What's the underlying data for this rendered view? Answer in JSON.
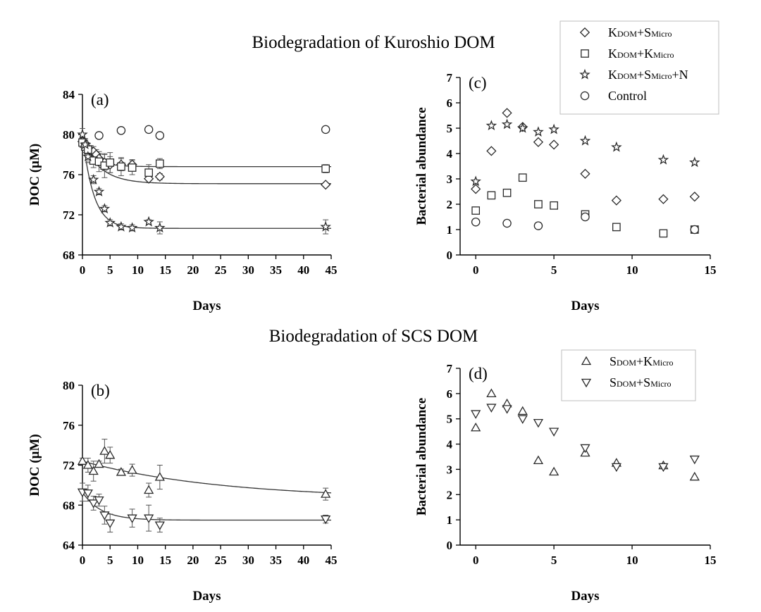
{
  "figure": {
    "title_top": "Biodegradation of Kuroshio DOM",
    "title_bottom": "Biodegradation of SCS DOM"
  },
  "chart_data": [
    {
      "id": "a",
      "panel_label": "(a)",
      "type": "scatter",
      "xlabel": "Days",
      "ylabel": "DOC (µM)",
      "xlim": [
        0,
        45
      ],
      "ylim": [
        68,
        84
      ],
      "xticks": [
        0,
        5,
        10,
        15,
        20,
        25,
        30,
        35,
        40,
        45
      ],
      "yticks": [
        68,
        72,
        76,
        80,
        84
      ],
      "series": [
        {
          "name": "KDOM+SMicro",
          "marker": "diamond",
          "x": [
            0,
            0.5,
            1,
            1.5,
            2,
            2.5,
            3,
            4,
            5,
            7,
            9,
            12,
            14,
            44
          ],
          "y": [
            79.3,
            79.1,
            78.6,
            78.4,
            78.3,
            78.0,
            77.6,
            77.2,
            77.0,
            77.0,
            77.0,
            75.6,
            75.8,
            75.0
          ],
          "err": [
            0.5,
            0.5,
            0.5,
            0.5,
            0.5,
            0.5,
            0.5,
            0.8,
            0.8,
            0.6,
            0.5,
            0.4,
            0.3,
            0.2
          ]
        },
        {
          "name": "KDOM+KMicro",
          "marker": "square",
          "x": [
            0,
            0.5,
            1,
            2,
            3,
            4,
            5,
            7,
            9,
            12,
            14,
            44
          ],
          "y": [
            79.2,
            78.8,
            78.5,
            77.4,
            77.3,
            76.9,
            77.2,
            76.8,
            76.7,
            76.2,
            77.1,
            76.6
          ],
          "err": [
            0.5,
            0.6,
            0.6,
            0.7,
            1.0,
            1.2,
            1.0,
            0.9,
            0.7,
            0.8,
            0.5,
            0.4
          ]
        },
        {
          "name": "KDOM+SMicro+N",
          "marker": "star",
          "x": [
            0,
            0.5,
            1,
            2,
            3,
            4,
            5,
            7,
            9,
            12,
            14,
            44
          ],
          "y": [
            80.0,
            79.0,
            77.8,
            75.5,
            74.3,
            72.6,
            71.2,
            70.8,
            70.7,
            71.3,
            70.7,
            70.8
          ],
          "err": [
            0.6,
            0.5,
            0.6,
            0.4,
            0.3,
            0.3,
            0.3,
            0.3,
            0.3,
            0.2,
            0.6,
            0.7
          ]
        },
        {
          "name": "Control",
          "marker": "circle",
          "x": [
            3,
            7,
            12,
            14,
            44
          ],
          "y": [
            79.9,
            80.4,
            80.5,
            79.9,
            80.5
          ],
          "err": [
            0,
            0,
            0,
            0,
            0
          ]
        }
      ],
      "fits": [
        {
          "series": "KDOM+SMicro",
          "y0": 79.3,
          "yinf": 75.1,
          "k": 0.3
        },
        {
          "series": "KDOM+KMicro",
          "y0": 79.2,
          "yinf": 76.8,
          "k": 0.45
        },
        {
          "series": "KDOM+SMicro+N",
          "y0": 80.0,
          "yinf": 70.65,
          "k": 0.5
        }
      ]
    },
    {
      "id": "b",
      "panel_label": "(b)",
      "type": "scatter",
      "xlabel": "Days",
      "ylabel": "DOC (µM)",
      "xlim": [
        0,
        45
      ],
      "ylim": [
        64,
        80
      ],
      "xticks": [
        0,
        5,
        10,
        15,
        20,
        25,
        30,
        35,
        40,
        45
      ],
      "yticks": [
        64,
        68,
        72,
        76,
        80
      ],
      "series": [
        {
          "name": "SDOM+KMicro",
          "marker": "triangle-up",
          "x": [
            0,
            1,
            2,
            3,
            4,
            5,
            7,
            9,
            12,
            14,
            44
          ],
          "y": [
            72.4,
            72.0,
            71.4,
            72.1,
            73.4,
            73.0,
            71.3,
            71.5,
            69.5,
            70.8,
            69.1
          ],
          "err": [
            0.3,
            0.7,
            1.0,
            0.3,
            1.2,
            0.8,
            0.3,
            0.6,
            0.7,
            1.2,
            0.6
          ]
        },
        {
          "name": "SDOM+SMicro",
          "marker": "triangle-down",
          "x": [
            0,
            1,
            2,
            3,
            4,
            5,
            9,
            12,
            14,
            44
          ],
          "y": [
            69.3,
            69.2,
            68.2,
            68.5,
            67.0,
            66.2,
            66.7,
            66.7,
            66.0,
            66.6
          ],
          "err": [
            0.9,
            0.8,
            0.7,
            0.6,
            0.9,
            0.9,
            0.9,
            1.3,
            0.7,
            0.4
          ]
        }
      ],
      "fits": [
        {
          "series": "SDOM+KMicro",
          "y0": 72.4,
          "yinf": 68.6,
          "k": 0.04
        },
        {
          "series": "SDOM+SMicro",
          "y0": 69.3,
          "yinf": 66.5,
          "k": 0.3
        }
      ]
    },
    {
      "id": "c",
      "panel_label": "(c)",
      "type": "scatter",
      "xlabel": "Days",
      "ylabel": "Bacterial abundance",
      "xlim": [
        -1,
        15
      ],
      "ylim": [
        0,
        7
      ],
      "xticks": [
        0,
        5,
        10,
        15
      ],
      "yticks": [
        0,
        1,
        2,
        3,
        4,
        5,
        6,
        7
      ],
      "series": [
        {
          "name": "KDOM+SMicro",
          "marker": "diamond",
          "x": [
            0,
            1,
            2,
            3,
            4,
            5,
            7,
            9,
            12,
            14
          ],
          "y": [
            2.6,
            4.1,
            5.6,
            5.05,
            4.45,
            4.35,
            3.2,
            2.15,
            2.2,
            2.3
          ]
        },
        {
          "name": "KDOM+KMicro",
          "marker": "square",
          "x": [
            0,
            1,
            2,
            3,
            4,
            5,
            7,
            9,
            12,
            14
          ],
          "y": [
            1.75,
            2.35,
            2.45,
            3.05,
            2.0,
            1.95,
            1.6,
            1.1,
            0.85,
            1.0
          ]
        },
        {
          "name": "KDOM+SMicro+N",
          "marker": "star",
          "x": [
            0,
            1,
            2,
            3,
            4,
            5,
            7,
            9,
            12,
            14
          ],
          "y": [
            2.9,
            5.1,
            5.15,
            5.0,
            4.85,
            4.95,
            4.5,
            4.25,
            3.75,
            3.65
          ]
        },
        {
          "name": "Control",
          "marker": "circle",
          "x": [
            0,
            2,
            4,
            7,
            14
          ],
          "y": [
            1.3,
            1.25,
            1.15,
            1.5,
            1.0
          ]
        }
      ],
      "legend": {
        "position": "top-right",
        "entries": [
          {
            "marker": "diamond",
            "parts": [
              "K",
              "DOM",
              "+S",
              "Micro",
              ""
            ]
          },
          {
            "marker": "square",
            "parts": [
              "K",
              "DOM",
              "+K",
              "Micro",
              ""
            ]
          },
          {
            "marker": "star",
            "parts": [
              "K",
              "DOM",
              "+S",
              "Micro",
              "+N"
            ]
          },
          {
            "marker": "circle",
            "parts": [
              "Control",
              "",
              "",
              "",
              ""
            ]
          }
        ]
      }
    },
    {
      "id": "d",
      "panel_label": "(d)",
      "type": "scatter",
      "xlabel": "Days",
      "ylabel": "Bacterial abundance",
      "xlim": [
        -1,
        15
      ],
      "ylim": [
        0,
        7
      ],
      "xticks": [
        0,
        5,
        10,
        15
      ],
      "yticks": [
        0,
        1,
        2,
        3,
        4,
        5,
        6,
        7
      ],
      "series": [
        {
          "name": "SDOM+KMicro",
          "marker": "triangle-up",
          "x": [
            0,
            1,
            2,
            3,
            4,
            5,
            7,
            9,
            12,
            14
          ],
          "y": [
            4.65,
            6.0,
            5.6,
            5.3,
            3.35,
            2.9,
            3.65,
            3.25,
            3.15,
            2.7
          ]
        },
        {
          "name": "SDOM+SMicro",
          "marker": "triangle-down",
          "x": [
            0,
            1,
            2,
            3,
            4,
            5,
            7,
            9,
            12,
            14
          ],
          "y": [
            5.2,
            5.45,
            5.4,
            5.0,
            4.85,
            4.5,
            3.85,
            3.1,
            3.1,
            3.4
          ]
        }
      ],
      "legend": {
        "position": "top-right",
        "entries": [
          {
            "marker": "triangle-up",
            "parts": [
              "S",
              "DOM",
              "+K",
              "Micro",
              ""
            ]
          },
          {
            "marker": "triangle-down",
            "parts": [
              "S",
              "DOM",
              "+S",
              "Micro",
              ""
            ]
          }
        ]
      }
    }
  ]
}
